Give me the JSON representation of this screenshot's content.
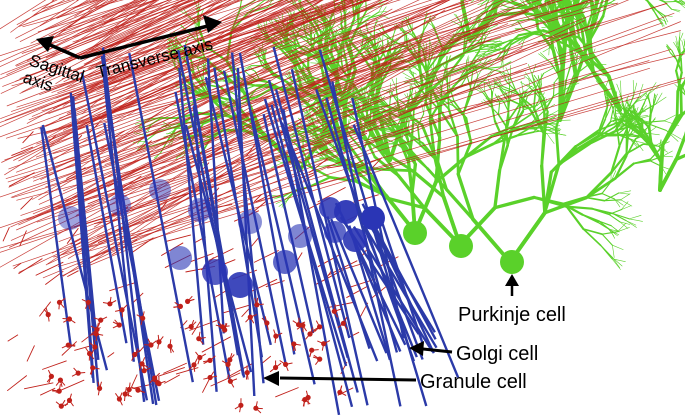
{
  "labels": {
    "sagittal_axis_line1": "Sagittal",
    "sagittal_axis_line2": "axis",
    "transverse_axis": "Transverse axis",
    "purkinje": "Purkinje cell",
    "golgi": "Golgi cell",
    "granule": "Granule cell"
  },
  "colors": {
    "background": "#ffffff",
    "parallel_fiber": "#c0201a",
    "golgi_axon": "#2b3aa8",
    "golgi_soma": "#2a35b5",
    "purkinje": "#5ad12a",
    "granule": "#c0201a",
    "label_text": "#000000"
  }
}
